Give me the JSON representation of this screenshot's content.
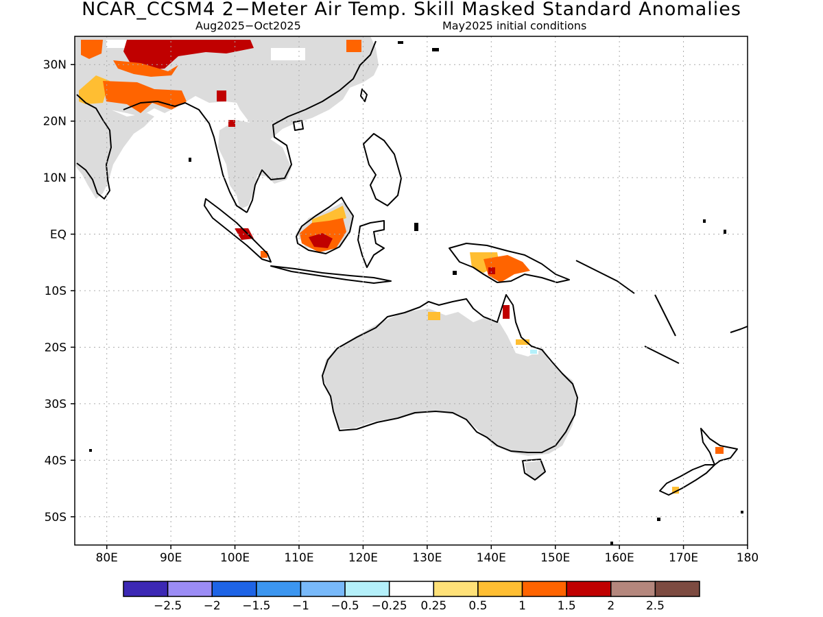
{
  "title": "NCAR_CCSM4 2−Meter Air Temp. Skill Masked Standard Anomalies",
  "subtitle_left": "Aug2025−Oct2025",
  "subtitle_right": "May2025 initial conditions",
  "map": {
    "lon_range": [
      75,
      180
    ],
    "lat_range": [
      -55,
      35
    ],
    "lon_ticks": [
      {
        "value": 80,
        "label": "80E"
      },
      {
        "value": 90,
        "label": "90E"
      },
      {
        "value": 100,
        "label": "100E"
      },
      {
        "value": 110,
        "label": "110E"
      },
      {
        "value": 120,
        "label": "120E"
      },
      {
        "value": 130,
        "label": "130E"
      },
      {
        "value": 140,
        "label": "140E"
      },
      {
        "value": 150,
        "label": "150E"
      },
      {
        "value": 160,
        "label": "160E"
      },
      {
        "value": 170,
        "label": "170E"
      },
      {
        "value": 180,
        "label": "180"
      }
    ],
    "lat_ticks": [
      {
        "value": 30,
        "label": "30N"
      },
      {
        "value": 20,
        "label": "20N"
      },
      {
        "value": 10,
        "label": "10N"
      },
      {
        "value": 0,
        "label": "EQ"
      },
      {
        "value": -10,
        "label": "10S"
      },
      {
        "value": -20,
        "label": "20S"
      },
      {
        "value": -30,
        "label": "30S"
      },
      {
        "value": -40,
        "label": "40S"
      },
      {
        "value": -50,
        "label": "50S"
      }
    ],
    "grid": true,
    "masked_land_color": "#dcdcdc",
    "coastline_color": "#000000"
  },
  "colorbar": {
    "colors": [
      "#3c28b4",
      "#9b8cf5",
      "#1e64e6",
      "#3c96f0",
      "#78b9fa",
      "#b4f0fa",
      "#ffffff",
      "#ffe178",
      "#ffbe32",
      "#ff6400",
      "#c00000",
      "#b4877d",
      "#7d4b41"
    ],
    "labels": [
      "−2.5",
      "−2",
      "−1.5",
      "−1",
      "−0.5",
      "−0.25",
      "0.25",
      "0.5",
      "1",
      "1.5",
      "2",
      "2.5"
    ]
  },
  "anomaly_patches": [
    {
      "region": "Tibet / western China",
      "category": "2",
      "color": "#c00000"
    },
    {
      "region": "Northern India / Bangladesh",
      "category": "1.5",
      "color": "#ff6400"
    },
    {
      "region": "Borneo",
      "category": "1.5",
      "color": "#ff6400"
    },
    {
      "region": "New Guinea",
      "category": "1.5",
      "color": "#ff6400"
    },
    {
      "region": "Sumatra",
      "category": "2",
      "color": "#c00000"
    },
    {
      "region": "Cape York",
      "category": "2",
      "color": "#c00000"
    },
    {
      "region": "North Island New Zealand",
      "category": "1.5",
      "color": "#ff6400"
    }
  ]
}
